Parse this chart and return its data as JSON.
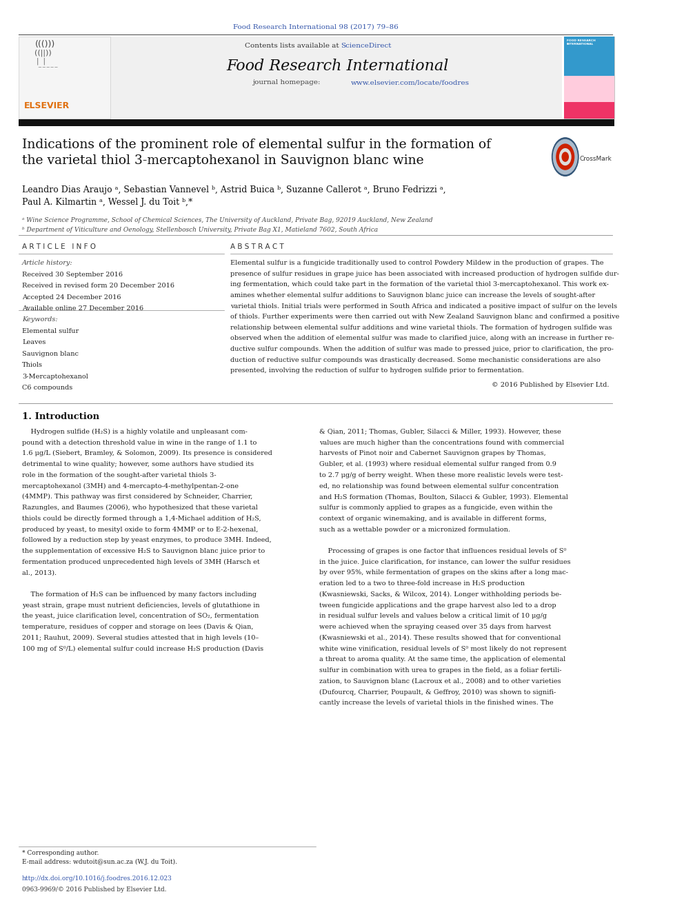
{
  "page_width": 9.92,
  "page_height": 13.23,
  "background_color": "#ffffff",
  "journal_ref": "Food Research International 98 (2017) 79–86",
  "journal_ref_color": "#3355aa",
  "journal_name": "Food Research International",
  "contents_text": "Contents lists available at ",
  "sciencedirect_text": "ScienceDirect",
  "sciencedirect_color": "#3355aa",
  "journal_homepage_text": "journal homepage: ",
  "journal_url": "www.elsevier.com/locate/foodres",
  "journal_url_color": "#3355aa",
  "header_bg_color": "#efefef",
  "thick_bar_color": "#1a1a1a",
  "article_title": "Indications of the prominent role of elemental sulfur in the formation of\nthe varietal thiol 3-mercaptohexanol in Sauvignon blanc wine",
  "authors": "Leandro Dias Araujo ᵃ, Sebastian Vannevel ᵇ, Astrid Buica ᵇ, Suzanne Callerot ᵃ, Bruno Fedrizzi ᵃ,\nPaul A. Kilmartin ᵃ, Wessel J. du Toit ᵇ,*",
  "affil_a": "ᵃ Wine Science Programme, School of Chemical Sciences, The University of Auckland, Private Bag, 92019 Auckland, New Zealand",
  "affil_b": "ᵇ Department of Viticulture and Oenology, Stellenbosch University, Private Bag X1, Matieland 7602, South Africa",
  "article_info_header": "A R T I C L E   I N F O",
  "abstract_header": "A B S T R A C T",
  "article_history_label": "Article history:",
  "received": "Received 30 September 2016",
  "received_revised": "Received in revised form 20 December 2016",
  "accepted": "Accepted 24 December 2016",
  "available": "Available online 27 December 2016",
  "keywords_label": "Keywords:",
  "keywords": [
    "Elemental sulfur",
    "Leaves",
    "Sauvignon blanc",
    "Thiols",
    "3-Mercaptohexanol",
    "C6 compounds"
  ],
  "abstract_lines": [
    "Elemental sulfur is a fungicide traditionally used to control Powdery Mildew in the production of grapes. The",
    "presence of sulfur residues in grape juice has been associated with increased production of hydrogen sulfide dur-",
    "ing fermentation, which could take part in the formation of the varietal thiol 3-mercaptohexanol. This work ex-",
    "amines whether elemental sulfur additions to Sauvignon blanc juice can increase the levels of sought-after",
    "varietal thiols. Initial trials were performed in South Africa and indicated a positive impact of sulfur on the levels",
    "of thiols. Further experiments were then carried out with New Zealand Sauvignon blanc and confirmed a positive",
    "relationship between elemental sulfur additions and wine varietal thiols. The formation of hydrogen sulfide was",
    "observed when the addition of elemental sulfur was made to clarified juice, along with an increase in further re-",
    "ductive sulfur compounds. When the addition of sulfur was made to pressed juice, prior to clarification, the pro-",
    "duction of reductive sulfur compounds was drastically decreased. Some mechanistic considerations are also",
    "presented, involving the reduction of sulfur to hydrogen sulfide prior to fermentation."
  ],
  "copyright": "© 2016 Published by Elsevier Ltd.",
  "section1_title": "1. Introduction",
  "col1_lines": [
    "    Hydrogen sulfide (H₂S) is a highly volatile and unpleasant com-",
    "pound with a detection threshold value in wine in the range of 1.1 to",
    "1.6 μg/L (Siebert, Bramley, & Solomon, 2009). Its presence is considered",
    "detrimental to wine quality; however, some authors have studied its",
    "role in the formation of the sought-after varietal thiols 3-",
    "mercaptohexanol (3MH) and 4-mercapto-4-methylpentan-2-one",
    "(4MMP). This pathway was first considered by Schneider, Charrier,",
    "Razungles, and Baumes (2006), who hypothesized that these varietal",
    "thiols could be directly formed through a 1,4-Michael addition of H₂S,",
    "produced by yeast, to mesityl oxide to form 4MMP or to E-2-hexenal,",
    "followed by a reduction step by yeast enzymes, to produce 3MH. Indeed,",
    "the supplementation of excessive H₂S to Sauvignon blanc juice prior to",
    "fermentation produced unprecedented high levels of 3MH (Harsch et",
    "al., 2013).",
    "",
    "    The formation of H₂S can be influenced by many factors including",
    "yeast strain, grape must nutrient deficiencies, levels of glutathione in",
    "the yeast, juice clarification level, concentration of SO₂, fermentation",
    "temperature, residues of copper and storage on lees (Davis & Qian,",
    "2011; Rauhut, 2009). Several studies attested that in high levels (10–",
    "100 mg of S⁰/L) elemental sulfur could increase H₂S production (Davis"
  ],
  "col2_lines": [
    "& Qian, 2011; Thomas, Gubler, Silacci & Miller, 1993). However, these",
    "values are much higher than the concentrations found with commercial",
    "harvests of Pinot noir and Cabernet Sauvignon grapes by Thomas,",
    "Gubler, et al. (1993) where residual elemental sulfur ranged from 0.9",
    "to 2.7 μg/g of berry weight. When these more realistic levels were test-",
    "ed, no relationship was found between elemental sulfur concentration",
    "and H₂S formation (Thomas, Boulton, Silacci & Gubler, 1993). Elemental",
    "sulfur is commonly applied to grapes as a fungicide, even within the",
    "context of organic winemaking, and is available in different forms,",
    "such as a wettable powder or a micronized formulation.",
    "",
    "    Processing of grapes is one factor that influences residual levels of S⁰",
    "in the juice. Juice clarification, for instance, can lower the sulfur residues",
    "by over 95%, while fermentation of grapes on the skins after a long mac-",
    "eration led to a two to three-fold increase in H₂S production",
    "(Kwasniewski, Sacks, & Wilcox, 2014). Longer withholding periods be-",
    "tween fungicide applications and the grape harvest also led to a drop",
    "in residual sulfur levels and values below a critical limit of 10 μg/g",
    "were achieved when the spraying ceased over 35 days from harvest",
    "(Kwasniewski et al., 2014). These results showed that for conventional",
    "white wine vinification, residual levels of S⁰ most likely do not represent",
    "a threat to aroma quality. At the same time, the application of elemental",
    "sulfur in combination with urea to grapes in the field, as a foliar fertili-",
    "zation, to Sauvignon blanc (Lacroux et al., 2008) and to other varieties",
    "(Dufourcq, Charrier, Poupault, & Geffroy, 2010) was shown to signifi-",
    "cantly increase the levels of varietal thiols in the finished wines. The"
  ],
  "footer_line1": "* Corresponding author.",
  "footer_line2": "E-mail address: wdutoit@sun.ac.za (W.J. du Toit).",
  "doi_text": "http://dx.doi.org/10.1016/j.foodres.2016.12.023",
  "issn_text": "0963-9969/© 2016 Published by Elsevier Ltd.",
  "text_color": "#000000",
  "link_color": "#3355aa",
  "header_bg": "#f0f0f0"
}
